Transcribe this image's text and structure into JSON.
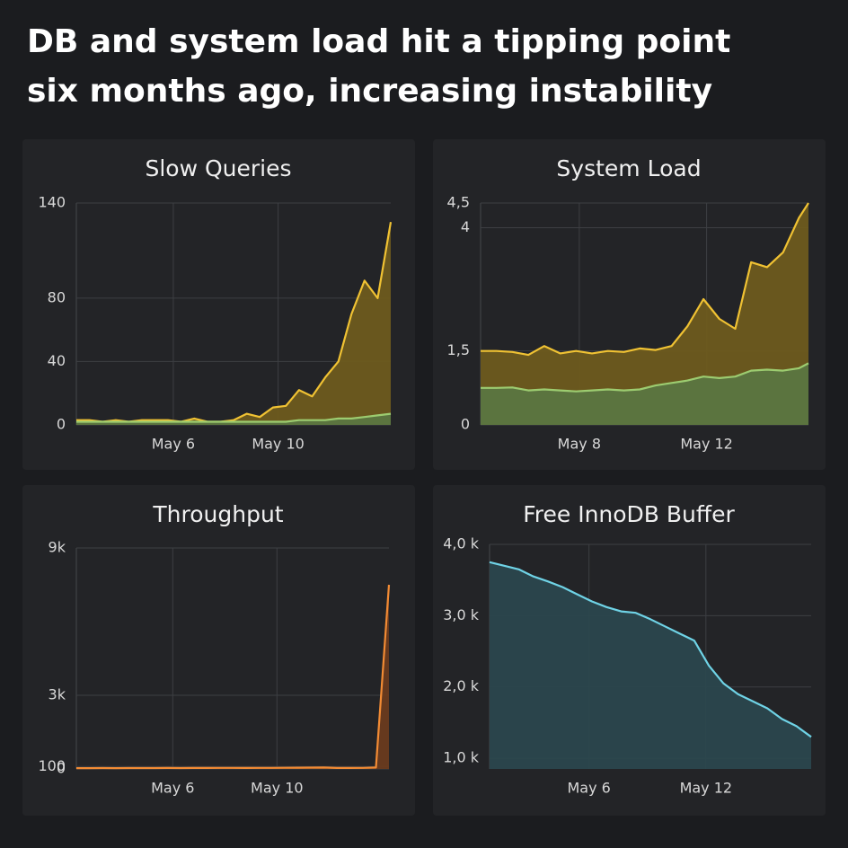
{
  "title": "DB and system load hit a tipping point six months ago, increasing instability",
  "chart_data": [
    {
      "type": "area",
      "title": "Slow Queries",
      "x": [
        2.3,
        2.8,
        3.3,
        3.8,
        4.3,
        4.8,
        5.3,
        5.8,
        6.3,
        6.8,
        7.3,
        7.8,
        8.3,
        8.8,
        9.3,
        9.8,
        10.3,
        10.8,
        11.3,
        11.8,
        12.3,
        12.8,
        13.3,
        13.8,
        14.3
      ],
      "xlim": [
        2.3,
        14.3
      ],
      "xticks": [
        {
          "value": 6,
          "label": "May 6"
        },
        {
          "value": 10,
          "label": "May 10"
        }
      ],
      "ylim": [
        0,
        140
      ],
      "yticks": [
        0,
        40,
        80,
        140
      ],
      "grid": true,
      "series": [
        {
          "color": "#f0c233",
          "fill": "#6e5b1e",
          "values": [
            3,
            3,
            2,
            3,
            2,
            3,
            3,
            3,
            2,
            4,
            2,
            2,
            3,
            7,
            5,
            11,
            12,
            22,
            18,
            30,
            40,
            70,
            91,
            80,
            128
          ]
        },
        {
          "color": "#9ccc70",
          "fill": "#5b7641",
          "values": [
            2,
            2,
            2,
            2,
            2,
            2,
            2,
            2,
            2,
            2,
            2,
            2,
            2,
            2,
            2,
            2,
            2,
            3,
            3,
            3,
            4,
            4,
            5,
            6,
            7
          ]
        }
      ]
    },
    {
      "type": "area",
      "title": "System Load",
      "x": [
        4.9,
        5.4,
        5.9,
        6.4,
        6.9,
        7.4,
        7.9,
        8.4,
        8.9,
        9.4,
        9.9,
        10.4,
        10.9,
        11.4,
        11.9,
        12.4,
        12.9,
        13.4,
        13.9,
        14.4,
        14.9,
        15.2
      ],
      "xlim": [
        4.9,
        15.2
      ],
      "xticks": [
        {
          "value": 8,
          "label": "May 8"
        },
        {
          "value": 12,
          "label": "May 12"
        }
      ],
      "ylim": [
        0,
        4.5
      ],
      "yticks": [
        0,
        {
          "value": 1.5,
          "label": "1,5"
        },
        4,
        {
          "value": 4.5,
          "label": "4,5"
        }
      ],
      "grid": true,
      "series": [
        {
          "color": "#f0c233",
          "fill": "#6e5b1e",
          "values": [
            1.5,
            1.5,
            1.48,
            1.42,
            1.6,
            1.45,
            1.5,
            1.45,
            1.5,
            1.48,
            1.55,
            1.52,
            1.6,
            2.0,
            2.55,
            2.15,
            1.95,
            3.3,
            3.2,
            3.5,
            4.2,
            4.5
          ]
        },
        {
          "color": "#9ccc70",
          "fill": "#5b7641",
          "values": [
            0.75,
            0.75,
            0.76,
            0.7,
            0.72,
            0.7,
            0.68,
            0.7,
            0.72,
            0.7,
            0.72,
            0.8,
            0.85,
            0.9,
            0.98,
            0.95,
            0.98,
            1.1,
            1.12,
            1.1,
            1.15,
            1.25
          ]
        }
      ]
    },
    {
      "type": "area",
      "title": "Throughput",
      "x": [
        2.3,
        2.8,
        3.3,
        3.8,
        4.3,
        4.8,
        5.3,
        5.8,
        6.3,
        6.8,
        7.3,
        7.8,
        8.3,
        8.8,
        9.3,
        9.8,
        10.3,
        10.8,
        11.3,
        11.8,
        12.3,
        12.8,
        13.3,
        13.8,
        14.3
      ],
      "xlim": [
        2.3,
        14.3
      ],
      "xticks": [
        {
          "value": 6,
          "label": "May 6"
        },
        {
          "value": 10,
          "label": "May 10"
        }
      ],
      "ylim": [
        0,
        9000
      ],
      "yticks": [
        0,
        100,
        {
          "value": 3000,
          "label": "3k"
        },
        {
          "value": 9000,
          "label": "9k"
        }
      ],
      "grid": true,
      "series": [
        {
          "color": "#f28b34",
          "fill": "#6a3b1e",
          "values": [
            32,
            33,
            35,
            34,
            36,
            37,
            38,
            39,
            38,
            40,
            42,
            44,
            43,
            41,
            43,
            45,
            48,
            52,
            55,
            60,
            42,
            40,
            45,
            60,
            7500
          ]
        }
      ]
    },
    {
      "type": "area",
      "title": "Free InnoDB Buffer",
      "x": [
        0.9,
        1.65,
        2.4,
        3.15,
        3.9,
        4.65,
        5.4,
        6.15,
        6.9,
        7.65,
        8.4,
        9.15,
        9.9,
        10.65,
        11.4,
        12.15,
        12.9,
        13.65,
        14.4,
        15.15,
        15.9,
        16.65,
        17.4
      ],
      "xlim": [
        0.9,
        17.4
      ],
      "xticks": [
        {
          "value": 6,
          "label": "May 6"
        },
        {
          "value": 12,
          "label": "May 12"
        }
      ],
      "ylim": [
        850,
        4000
      ],
      "yticks": [
        {
          "value": 1000,
          "label": "1,0 k"
        },
        {
          "value": 2000,
          "label": "2,0 k"
        },
        {
          "value": 3000,
          "label": "3,0 k"
        },
        {
          "value": 4000,
          "label": "4,0 k"
        }
      ],
      "grid": true,
      "series": [
        {
          "color": "#6fd3e6",
          "fill": "#2b474d",
          "values": [
            3750,
            3700,
            3650,
            3550,
            3480,
            3400,
            3300,
            3200,
            3120,
            3060,
            3040,
            2950,
            2850,
            2750,
            2650,
            2300,
            2050,
            1900,
            1800,
            1700,
            1550,
            1450,
            1300
          ]
        }
      ]
    }
  ]
}
